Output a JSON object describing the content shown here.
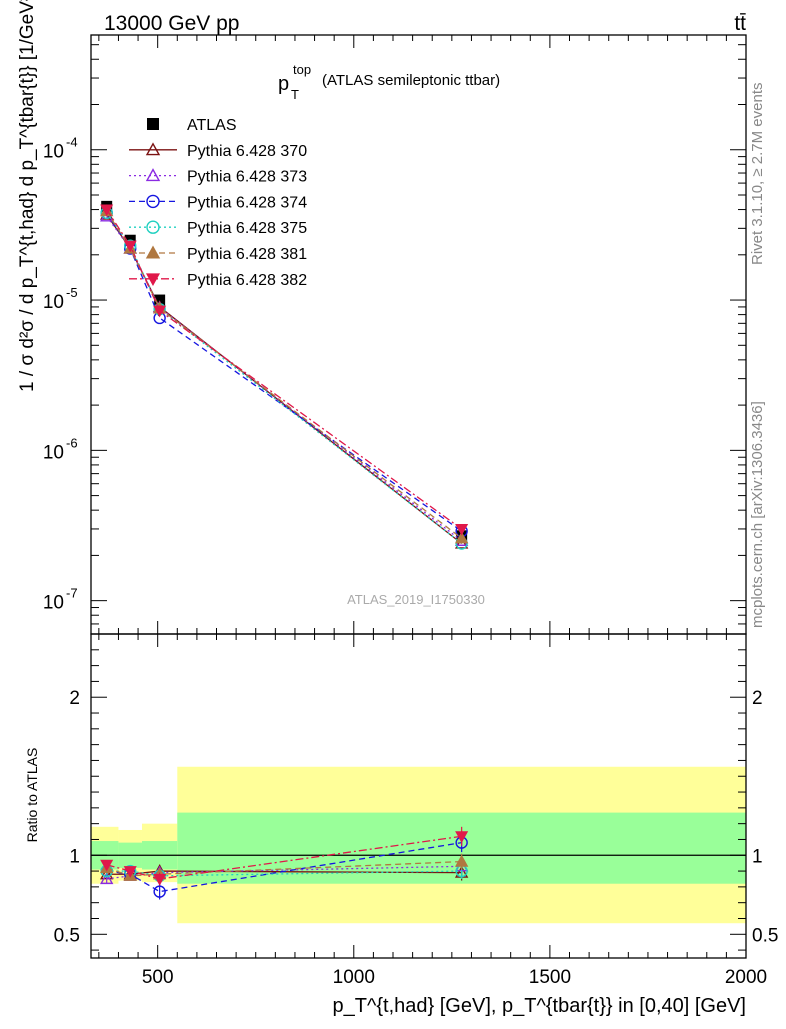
{
  "header": {
    "left": "13000 GeV pp",
    "right": "tt̄"
  },
  "side_labels": {
    "rivet": "Rivet 3.1.10, ≥ 2.7M events",
    "mcplots": "mcplots.cern.ch [arXiv:1306.3436]"
  },
  "main_plot": {
    "title_main": "p",
    "title_sup": "top",
    "title_sub": "T",
    "title_rest": "(ATLAS semileptonic ttbar)",
    "watermark": "ATLAS_2019_I1750330",
    "ylabel": "1 / σ d²σ / d p_T^{t,had} d p_T^{tbar{t}} [1/GeV²]",
    "ytick_labels": [
      "10",
      "10",
      "10",
      "10"
    ],
    "ytick_exponents": [
      "-7",
      "-6",
      "-5",
      "-4"
    ],
    "ytick_values": [
      1e-07,
      1e-06,
      1e-05,
      0.0001
    ],
    "ylim": [
      6e-08,
      0.00058
    ],
    "yscale": "log"
  },
  "ratio_plot": {
    "ylabel": "Ratio to ATLAS",
    "ylim": [
      0.35,
      2.4
    ],
    "ytick_labels": [
      "0.5",
      "1",
      "2"
    ],
    "ytick_values": [
      0.5,
      1,
      2
    ]
  },
  "xaxis": {
    "xlim": [
      330,
      2000
    ],
    "tick_labels": [
      "500",
      "1000",
      "1500",
      "2000"
    ],
    "tick_values": [
      500,
      1000,
      1500,
      2000
    ],
    "label": "p_T^{t,had} [GeV], p_T^{tbar{t}} in [0,40] [GeV]"
  },
  "legend": {
    "placement": "top-left",
    "entries": [
      {
        "label": "ATLAS",
        "color": "#000000",
        "marker": "square-filled",
        "line": "none"
      },
      {
        "label": "Pythia 6.428 370",
        "color": "#7b1212",
        "marker": "triangle-up-open",
        "line": "solid"
      },
      {
        "label": "Pythia 6.428 373",
        "color": "#8a2be2",
        "marker": "triangle-up-open",
        "line": "dotted"
      },
      {
        "label": "Pythia 6.428 374",
        "color": "#1515e0",
        "marker": "circle-open",
        "line": "dashed"
      },
      {
        "label": "Pythia 6.428 375",
        "color": "#20d0c0",
        "marker": "circle-open",
        "line": "dotted"
      },
      {
        "label": "Pythia 6.428 381",
        "color": "#b07840",
        "marker": "triangle-up-filled",
        "line": "dashed"
      },
      {
        "label": "Pythia 6.428 382",
        "color": "#e0184a",
        "marker": "triangle-down-filled",
        "line": "dashdot"
      }
    ]
  },
  "chart_data": {
    "type": "line",
    "x": [
      370,
      430,
      505,
      1275
    ],
    "bins": [
      [
        330,
        400
      ],
      [
        400,
        460
      ],
      [
        460,
        550
      ],
      [
        550,
        2000
      ]
    ],
    "band_green": [
      [
        0.91,
        1.09
      ],
      [
        0.92,
        1.08
      ],
      [
        0.91,
        1.09
      ],
      [
        0.82,
        1.27
      ]
    ],
    "band_yellow": [
      [
        0.82,
        1.18
      ],
      [
        0.84,
        1.16
      ],
      [
        0.83,
        1.2
      ],
      [
        0.57,
        1.56
      ]
    ],
    "series": [
      {
        "name": "ATLAS",
        "values": [
          4.2e-05,
          2.5e-05,
          1e-05,
          2.7e-07
        ]
      },
      {
        "name": "Pythia 6.428 370",
        "values": [
          3.7e-05,
          2.2e-05,
          9e-06,
          2.4e-07
        ],
        "ratio": [
          0.88,
          0.88,
          0.9,
          0.89
        ],
        "ratio_err": [
          0.03,
          0.03,
          0.04,
          0.05
        ]
      },
      {
        "name": "Pythia 6.428 373",
        "values": [
          3.6e-05,
          2.2e-05,
          8.9e-06,
          2.5e-07
        ],
        "ratio": [
          0.85,
          0.87,
          0.89,
          0.93
        ],
        "ratio_err": [
          0.03,
          0.03,
          0.04,
          0.05
        ]
      },
      {
        "name": "Pythia 6.428 374",
        "values": [
          3.8e-05,
          2.2e-05,
          7.6e-06,
          2.9e-07
        ],
        "ratio": [
          0.9,
          0.88,
          0.77,
          1.08
        ],
        "ratio_err": [
          0.03,
          0.03,
          0.05,
          0.06
        ]
      },
      {
        "name": "Pythia 6.428 375",
        "values": [
          3.8e-05,
          2.3e-05,
          8.7e-06,
          2.4e-07
        ],
        "ratio": [
          0.9,
          0.9,
          0.87,
          0.9
        ],
        "ratio_err": [
          0.03,
          0.03,
          0.04,
          0.05
        ]
      },
      {
        "name": "Pythia 6.428 381",
        "values": [
          3.9e-05,
          2.2e-05,
          8.8e-06,
          2.6e-07
        ],
        "ratio": [
          0.92,
          0.87,
          0.88,
          0.96
        ],
        "ratio_err": [
          0.03,
          0.03,
          0.04,
          0.05
        ]
      },
      {
        "name": "Pythia 6.428 382",
        "values": [
          4e-05,
          2.3e-05,
          8.5e-06,
          3e-07
        ],
        "ratio": [
          0.94,
          0.9,
          0.85,
          1.12
        ],
        "ratio_err": [
          0.03,
          0.03,
          0.04,
          0.06
        ]
      }
    ]
  }
}
